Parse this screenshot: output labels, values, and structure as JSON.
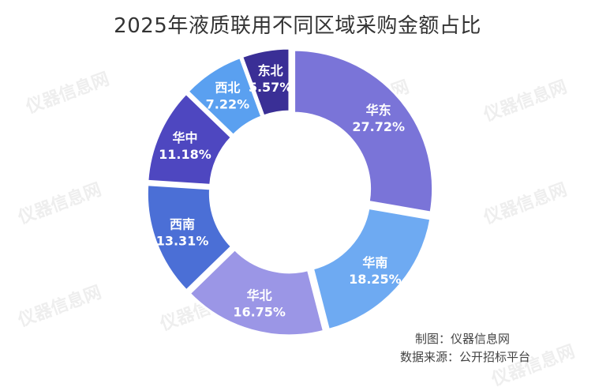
{
  "chart_data": {
    "type": "pie",
    "title": "2025年液质联用不同区域采购金额占比",
    "categories": [
      "华东",
      "华南",
      "华北",
      "西南",
      "华中",
      "西北",
      "东北"
    ],
    "values": [
      27.72,
      18.25,
      16.75,
      13.31,
      11.18,
      7.22,
      5.57
    ],
    "value_labels": [
      "27.72%",
      "18.25%",
      "16.75%",
      "13.31%",
      "11.18%",
      "7.22%",
      "5.57%"
    ],
    "colors": [
      "#7a74d8",
      "#6eaaf2",
      "#9b96e6",
      "#4b6fd6",
      "#4e47c0",
      "#5aa0f0",
      "#3a2f96"
    ],
    "inner_label_colors": [
      "#ffffff",
      "#ffffff",
      "#ffffff",
      "#ffffff",
      "#ffffff",
      "#4e47c0",
      "#ffffff"
    ]
  },
  "footer": {
    "maker": "制图：仪器信息网",
    "source": "数据来源：公开招标平台"
  },
  "watermark": "仪器信息网"
}
